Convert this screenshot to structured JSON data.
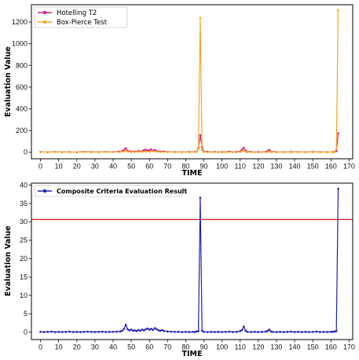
{
  "chart_data": [
    {
      "type": "line",
      "xlabel": "TIME",
      "ylabel": "Evaluation Value",
      "xlim": [
        -5,
        172
      ],
      "ylim": [
        -60,
        1360
      ],
      "x_ticks": [
        0,
        10,
        20,
        30,
        40,
        50,
        60,
        70,
        80,
        90,
        100,
        110,
        120,
        130,
        140,
        150,
        160,
        170
      ],
      "y_ticks": [
        0,
        200,
        400,
        600,
        800,
        1000,
        1200
      ],
      "grid": false,
      "legend_position": "top-left",
      "series": [
        {
          "name": "Hotelling T2",
          "color": "#d81b8a",
          "marker": "circle",
          "x": [
            0,
            4,
            8,
            12,
            16,
            20,
            24,
            28,
            32,
            36,
            40,
            43,
            45,
            46,
            47,
            48,
            50,
            52,
            54,
            56,
            57,
            58,
            59,
            60,
            61,
            62,
            63,
            64,
            66,
            68,
            70,
            74,
            78,
            82,
            85,
            86,
            87,
            88,
            89,
            90,
            92,
            96,
            100,
            104,
            108,
            110,
            111,
            112,
            113,
            114,
            116,
            120,
            124,
            125,
            126,
            127,
            130,
            134,
            138,
            142,
            146,
            150,
            154,
            158,
            161,
            162,
            163,
            164
          ],
          "values": [
            3,
            1,
            4,
            2,
            3,
            1,
            5,
            3,
            2,
            4,
            3,
            6,
            10,
            22,
            38,
            14,
            8,
            6,
            12,
            9,
            18,
            24,
            16,
            20,
            26,
            15,
            22,
            10,
            8,
            6,
            4,
            3,
            2,
            4,
            3,
            6,
            40,
            158,
            50,
            6,
            4,
            3,
            2,
            5,
            3,
            8,
            25,
            42,
            14,
            6,
            3,
            2,
            4,
            12,
            22,
            6,
            3,
            2,
            4,
            3,
            2,
            4,
            3,
            2,
            3,
            5,
            10,
            175
          ]
        },
        {
          "name": "Box-Pierce Test",
          "color": "#f5a623",
          "marker": "circle",
          "x": [
            0,
            4,
            8,
            12,
            16,
            20,
            24,
            28,
            32,
            36,
            40,
            44,
            46,
            47,
            48,
            50,
            54,
            56,
            58,
            60,
            62,
            64,
            66,
            70,
            74,
            78,
            82,
            85,
            86,
            87,
            88,
            89,
            90,
            94,
            98,
            102,
            106,
            110,
            111,
            112,
            113,
            114,
            118,
            122,
            125,
            126,
            127,
            130,
            134,
            138,
            142,
            146,
            150,
            154,
            158,
            161,
            162,
            163,
            164
          ],
          "values": [
            2,
            1,
            3,
            2,
            1,
            2,
            3,
            1,
            2,
            2,
            3,
            4,
            8,
            14,
            6,
            3,
            5,
            4,
            8,
            6,
            9,
            5,
            3,
            2,
            1,
            2,
            1,
            2,
            4,
            30,
            1238,
            20,
            2,
            1,
            2,
            1,
            2,
            3,
            10,
            16,
            5,
            2,
            1,
            2,
            4,
            8,
            2,
            1,
            2,
            1,
            2,
            1,
            2,
            1,
            2,
            1,
            3,
            28,
            1310
          ]
        }
      ]
    },
    {
      "type": "line",
      "xlabel": "TIME",
      "ylabel": "Evaluation Value",
      "xlim": [
        -5,
        172
      ],
      "ylim": [
        -2,
        40.5
      ],
      "x_ticks": [
        0,
        10,
        20,
        30,
        40,
        50,
        60,
        70,
        80,
        90,
        100,
        110,
        120,
        130,
        140,
        150,
        160,
        170
      ],
      "y_ticks": [
        0,
        5,
        10,
        15,
        20,
        25,
        30,
        35,
        40
      ],
      "grid": false,
      "legend_position": "top-left",
      "threshold": {
        "value": 30.6,
        "color": "#d62728"
      },
      "series": [
        {
          "name": "Composite Criteria Evaluation Result",
          "color": "#1f1fb4",
          "marker": "circle",
          "x": [
            0,
            2,
            4,
            6,
            8,
            10,
            12,
            14,
            16,
            18,
            20,
            22,
            24,
            26,
            28,
            30,
            32,
            34,
            36,
            38,
            40,
            42,
            44,
            45,
            46,
            47,
            48,
            49,
            50,
            51,
            52,
            53,
            54,
            55,
            56,
            57,
            58,
            59,
            60,
            61,
            62,
            63,
            64,
            65,
            66,
            67,
            68,
            70,
            72,
            74,
            76,
            78,
            80,
            82,
            84,
            85,
            86,
            87,
            88,
            89,
            90,
            92,
            94,
            96,
            98,
            100,
            102,
            104,
            106,
            108,
            110,
            111,
            112,
            113,
            114,
            116,
            118,
            120,
            122,
            124,
            125,
            126,
            127,
            128,
            130,
            132,
            134,
            136,
            138,
            140,
            142,
            144,
            146,
            148,
            150,
            152,
            154,
            156,
            158,
            160,
            161,
            162,
            163,
            164
          ],
          "values": [
            0.1,
            0.05,
            0.1,
            0.15,
            0.05,
            0.1,
            0.05,
            0.1,
            0.15,
            0.05,
            0.1,
            0.05,
            0.1,
            0.15,
            0.1,
            0.05,
            0.1,
            0.15,
            0.05,
            0.1,
            0.1,
            0.15,
            0.2,
            0.4,
            0.9,
            2.0,
            0.8,
            0.5,
            0.7,
            0.4,
            0.5,
            0.3,
            0.6,
            0.4,
            0.7,
            0.5,
            0.8,
            1.0,
            0.7,
            0.9,
            0.6,
            1.1,
            0.8,
            0.5,
            0.4,
            0.6,
            0.3,
            0.2,
            0.15,
            0.1,
            0.1,
            0.05,
            0.1,
            0.05,
            0.1,
            0.05,
            0.2,
            0.3,
            36.5,
            0.4,
            0.1,
            0.05,
            0.1,
            0.05,
            0.1,
            0.05,
            0.1,
            0.15,
            0.05,
            0.1,
            0.3,
            0.6,
            1.5,
            0.4,
            0.1,
            0.05,
            0.1,
            0.05,
            0.1,
            0.15,
            0.3,
            0.7,
            0.2,
            0.1,
            0.05,
            0.1,
            0.05,
            0.1,
            0.15,
            0.05,
            0.1,
            0.05,
            0.1,
            0.05,
            0.1,
            0.15,
            0.05,
            0.1,
            0.05,
            0.1,
            0.1,
            0.2,
            0.3,
            39.0
          ]
        }
      ]
    }
  ]
}
